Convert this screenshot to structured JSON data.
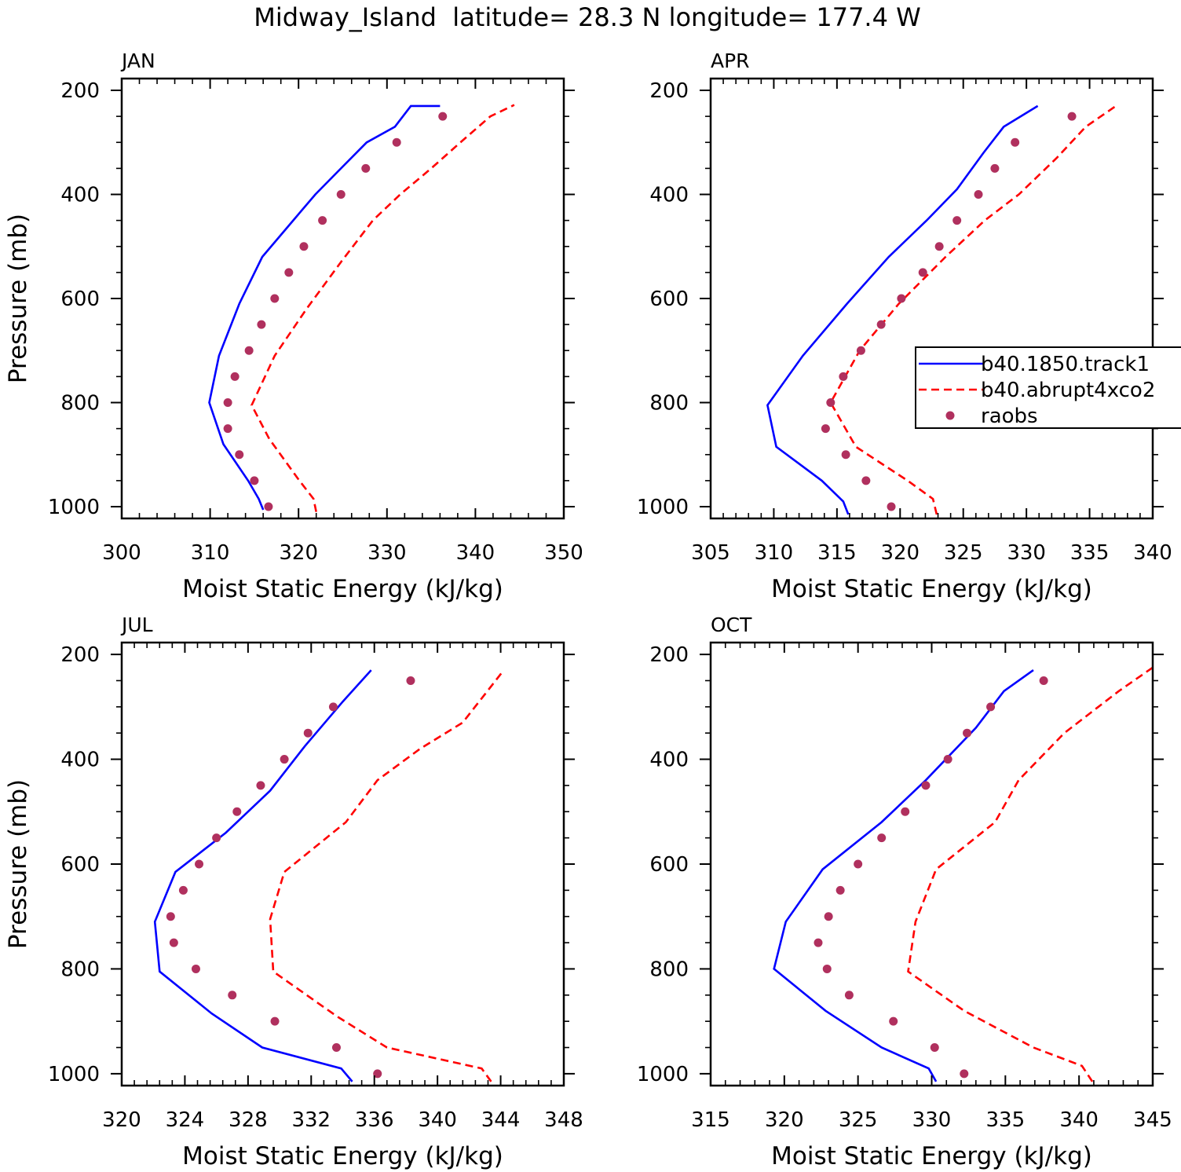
{
  "figure": {
    "title": "Midway_Island  latitude= 28.3 N longitude= 177.4 W"
  },
  "chart_data": [
    {
      "type": "line",
      "panel": "JAN",
      "xlabel": "Moist Static Energy (kJ/kg)",
      "ylabel": "Pressure (mb)",
      "xlim": [
        300,
        350
      ],
      "ylim": [
        200,
        1000
      ],
      "xticks": [
        300,
        310,
        320,
        330,
        340,
        350
      ],
      "yticks": [
        200,
        400,
        600,
        800,
        1000
      ],
      "series": [
        {
          "name": "b40.1850.track1",
          "style": "solid",
          "color": "#0000ff",
          "x": [
            316.0,
            315.5,
            314.3,
            311.5,
            309.9,
            311.0,
            313.3,
            315.9,
            319.4,
            321.9,
            324.8,
            327.7,
            330.9,
            332.7,
            336.0
          ],
          "y": [
            1006,
            985,
            950,
            880,
            800,
            710,
            610,
            520,
            450,
            400,
            350,
            300,
            270,
            230,
            230
          ]
        },
        {
          "name": "b40.abrupt4xco2",
          "style": "dashed",
          "color": "#ff0000",
          "x": [
            322.0,
            321.7,
            320.1,
            316.7,
            314.7,
            317.3,
            320.9,
            324.8,
            328.4,
            331.5,
            335.0,
            338.3,
            341.7,
            344.4
          ],
          "y": [
            1010,
            985,
            950,
            870,
            805,
            710,
            620,
            530,
            450,
            400,
            350,
            300,
            250,
            228
          ]
        },
        {
          "name": "raobs",
          "style": "markers",
          "color": "#b0305e",
          "x": [
            316.6,
            315.0,
            313.3,
            312.0,
            312.0,
            312.8,
            314.4,
            315.8,
            317.3,
            318.9,
            320.6,
            322.7,
            324.8,
            327.6,
            331.1,
            336.3
          ],
          "y": [
            1000,
            950,
            900,
            850,
            800,
            750,
            700,
            650,
            600,
            550,
            500,
            450,
            400,
            350,
            300,
            250
          ]
        }
      ]
    },
    {
      "type": "line",
      "panel": "APR",
      "xlabel": "Moist Static Energy (kJ/kg)",
      "ylabel": "",
      "xlim": [
        305,
        340
      ],
      "ylim": [
        200,
        1000
      ],
      "xticks": [
        305,
        310,
        315,
        320,
        325,
        330,
        335,
        340
      ],
      "yticks": [
        200,
        400,
        600,
        800,
        1000
      ],
      "legend": {
        "placement": "right",
        "entries": [
          "b40.1850.track1",
          "b40.abrupt4xco2",
          "raobs"
        ]
      },
      "series": [
        {
          "name": "b40.1850.track1",
          "style": "solid",
          "color": "#0000ff",
          "x": [
            315.9,
            315.5,
            313.8,
            310.2,
            309.5,
            312.3,
            315.8,
            319.1,
            322.1,
            324.5,
            326.6,
            328.2,
            330.9
          ],
          "y": [
            1015,
            990,
            950,
            885,
            805,
            710,
            610,
            520,
            450,
            390,
            320,
            270,
            230
          ]
        },
        {
          "name": "b40.abrupt4xco2",
          "style": "dashed",
          "color": "#ff0000",
          "x": [
            322.9,
            322.6,
            320.6,
            316.5,
            314.5,
            316.8,
            319.9,
            323.6,
            326.7,
            329.4,
            332.4,
            334.7,
            337.2
          ],
          "y": [
            1015,
            985,
            950,
            885,
            800,
            700,
            610,
            520,
            450,
            400,
            330,
            270,
            228
          ]
        },
        {
          "name": "raobs",
          "style": "markers",
          "color": "#b0305e",
          "x": [
            319.3,
            317.3,
            315.7,
            314.1,
            314.5,
            315.5,
            316.9,
            318.5,
            320.1,
            321.8,
            323.1,
            324.5,
            326.2,
            327.5,
            329.1,
            333.6
          ],
          "y": [
            1000,
            950,
            900,
            850,
            800,
            750,
            700,
            650,
            600,
            550,
            500,
            450,
            400,
            350,
            300,
            250
          ]
        }
      ]
    },
    {
      "type": "line",
      "panel": "JUL",
      "xlabel": "Moist Static Energy (kJ/kg)",
      "ylabel": "Pressure (mb)",
      "xlim": [
        320,
        348
      ],
      "ylim": [
        200,
        1000
      ],
      "xticks": [
        320,
        324,
        328,
        332,
        336,
        340,
        344,
        348
      ],
      "yticks": [
        200,
        400,
        600,
        800,
        1000
      ],
      "series": [
        {
          "name": "b40.1850.track1",
          "style": "solid",
          "color": "#0000ff",
          "x": [
            334.6,
            333.9,
            328.9,
            325.7,
            322.4,
            322.1,
            323.4,
            326.6,
            329.4,
            331.6,
            334.0,
            335.8
          ],
          "y": [
            1015,
            990,
            950,
            885,
            805,
            710,
            615,
            540,
            460,
            375,
            290,
            230
          ]
        },
        {
          "name": "b40.abrupt4xco2",
          "style": "dashed",
          "color": "#ff0000",
          "x": [
            343.4,
            342.8,
            336.8,
            333.6,
            329.6,
            329.4,
            330.3,
            334.2,
            336.2,
            338.9,
            341.6,
            344.2
          ],
          "y": [
            1015,
            990,
            950,
            890,
            805,
            705,
            615,
            520,
            440,
            380,
            330,
            230
          ]
        },
        {
          "name": "raobs",
          "style": "markers",
          "color": "#b0305e",
          "x": [
            336.2,
            333.6,
            329.7,
            327.0,
            324.7,
            323.3,
            323.1,
            323.9,
            324.9,
            326.0,
            327.3,
            328.8,
            330.3,
            331.8,
            333.4,
            338.3
          ],
          "y": [
            1000,
            950,
            900,
            850,
            800,
            750,
            700,
            650,
            600,
            550,
            500,
            450,
            400,
            350,
            300,
            250
          ]
        }
      ]
    },
    {
      "type": "line",
      "panel": "OCT",
      "xlabel": "Moist Static Energy (kJ/kg)",
      "ylabel": "",
      "xlim": [
        315,
        345
      ],
      "ylim": [
        200,
        1000
      ],
      "xticks": [
        315,
        320,
        325,
        330,
        335,
        340,
        345
      ],
      "yticks": [
        200,
        400,
        600,
        800,
        1000
      ],
      "series": [
        {
          "name": "b40.1850.track1",
          "style": "solid",
          "color": "#0000ff",
          "x": [
            330.3,
            329.8,
            326.6,
            322.8,
            319.3,
            320.1,
            322.6,
            326.6,
            329.6,
            333.0,
            334.9,
            336.9
          ],
          "y": [
            1015,
            990,
            950,
            880,
            800,
            710,
            610,
            520,
            440,
            340,
            270,
            230
          ]
        },
        {
          "name": "b40.abrupt4xco2",
          "style": "dashed",
          "color": "#ff0000",
          "x": [
            340.9,
            340.2,
            336.9,
            332.2,
            328.4,
            328.9,
            330.3,
            334.3,
            335.9,
            339.0,
            342.7,
            345.0
          ],
          "y": [
            1015,
            985,
            950,
            880,
            805,
            710,
            610,
            520,
            440,
            350,
            270,
            225
          ]
        },
        {
          "name": "raobs",
          "style": "markers",
          "color": "#b0305e",
          "x": [
            332.2,
            330.2,
            327.4,
            324.4,
            322.9,
            322.3,
            323.0,
            323.8,
            325.0,
            326.6,
            328.2,
            329.6,
            331.1,
            332.4,
            334.0,
            337.6
          ],
          "y": [
            1000,
            950,
            900,
            850,
            800,
            750,
            700,
            650,
            600,
            550,
            500,
            450,
            400,
            350,
            300,
            250
          ]
        }
      ]
    }
  ]
}
